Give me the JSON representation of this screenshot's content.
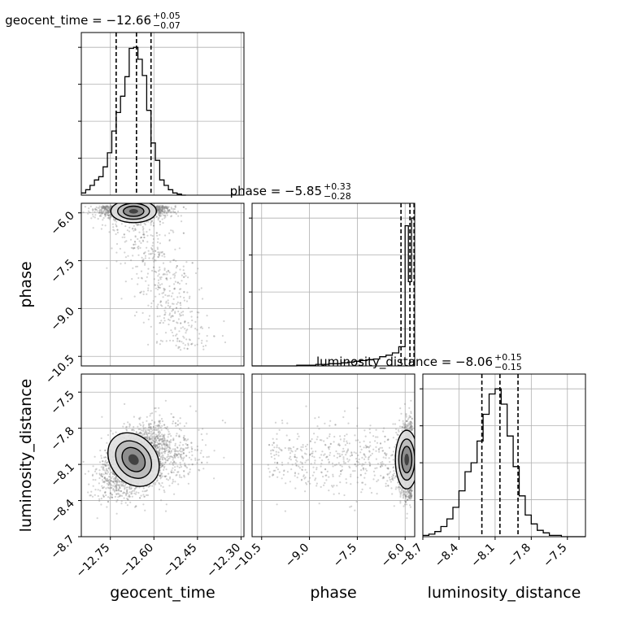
{
  "chart_data": {
    "type": "corner",
    "parameters": [
      "geocent_time",
      "phase",
      "luminosity_distance"
    ],
    "axis_labels": [
      "geocent_time",
      "phase",
      "luminosity_distance"
    ],
    "ranges": {
      "geocent_time": [
        -12.85,
        -12.29
      ],
      "phase": [
        -10.8,
        -5.7
      ],
      "luminosity_distance": [
        -8.7,
        -7.35
      ]
    },
    "ticks": {
      "geocent_time": [
        {
          "value": -12.75,
          "label": "−12.75"
        },
        {
          "value": -12.6,
          "label": "−12.60"
        },
        {
          "value": -12.45,
          "label": "−12.45"
        },
        {
          "value": -12.3,
          "label": "−12.30"
        }
      ],
      "phase": [
        {
          "value": -10.5,
          "label": "−10.5"
        },
        {
          "value": -9.0,
          "label": "−9.0"
        },
        {
          "value": -7.5,
          "label": "−7.5"
        },
        {
          "value": -6.0,
          "label": "−6.0"
        }
      ],
      "luminosity_distance": [
        {
          "value": -8.7,
          "label": "−8.7"
        },
        {
          "value": -8.4,
          "label": "−8.4"
        },
        {
          "value": -8.1,
          "label": "−8.1"
        },
        {
          "value": -7.8,
          "label": "−7.8"
        },
        {
          "value": -7.5,
          "label": "−7.5"
        }
      ]
    },
    "titles": [
      {
        "param": "geocent_time",
        "name": "geocent_time",
        "median": "−12.66",
        "plus": "+0.05",
        "minus": "−0.07"
      },
      {
        "param": "phase",
        "name": "phase",
        "median": "−5.85",
        "plus": "+0.33",
        "minus": "−0.28"
      },
      {
        "param": "luminosity_distance",
        "name": "luminosity_distance",
        "median": "−8.06",
        "plus": "+0.15",
        "minus": "−0.15"
      }
    ],
    "quantiles": {
      "geocent_time": [
        -12.73,
        -12.66,
        -12.61
      ],
      "phase": [
        -6.13,
        -5.85,
        -5.72
      ],
      "luminosity_distance": [
        -8.21,
        -8.06,
        -7.91
      ]
    },
    "histograms": {
      "geocent_time": {
        "edges": [
          -12.85,
          -12.835,
          -12.82,
          -12.805,
          -12.79,
          -12.775,
          -12.76,
          -12.745,
          -12.73,
          -12.715,
          -12.7,
          -12.685,
          -12.67,
          -12.655,
          -12.64,
          -12.625,
          -12.61,
          -12.595,
          -12.58,
          -12.565,
          -12.55,
          -12.535,
          -12.52,
          -12.505,
          -12.49
        ],
        "counts": [
          2,
          5,
          9,
          14,
          17,
          26,
          39,
          59,
          76,
          91,
          109,
          135,
          136,
          125,
          110,
          78,
          48,
          32,
          14,
          9,
          5,
          2,
          1,
          0
        ]
      },
      "phase": {
        "edges": [
          -10.8,
          -10.6,
          -10.4,
          -10.2,
          -10.0,
          -9.8,
          -9.6,
          -9.4,
          -9.2,
          -9.0,
          -8.8,
          -8.6,
          -8.4,
          -8.2,
          -8.0,
          -7.8,
          -7.6,
          -7.4,
          -7.2,
          -7.0,
          -6.8,
          -6.6,
          -6.4,
          -6.2,
          -6.0,
          -5.9,
          -5.8,
          -5.7
        ],
        "counts": [
          0,
          0,
          0,
          0,
          0,
          0,
          0,
          1,
          1,
          1,
          2,
          2,
          3,
          3,
          4,
          5,
          6,
          7,
          8,
          9,
          12,
          14,
          17,
          25,
          183,
          110,
          193
        ]
      },
      "luminosity_distance": {
        "edges": [
          -8.7,
          -8.65,
          -8.6,
          -8.55,
          -8.5,
          -8.45,
          -8.4,
          -8.35,
          -8.3,
          -8.25,
          -8.2,
          -8.15,
          -8.1,
          -8.05,
          -8.0,
          -7.95,
          -7.9,
          -7.85,
          -7.8,
          -7.75,
          -7.7,
          -7.65,
          -7.6,
          -7.55,
          -7.5,
          -7.45,
          -7.4,
          -7.35
        ],
        "counts": [
          1,
          2,
          4,
          8,
          14,
          23,
          36,
          51,
          58,
          75,
          96,
          112,
          116,
          104,
          79,
          55,
          32,
          17,
          10,
          5,
          3,
          1,
          1,
          0,
          0,
          0,
          0
        ]
      }
    },
    "scatter_center": {
      "geocent_time": -12.67,
      "phase": -5.95,
      "luminosity_distance": -8.06
    },
    "grid": true,
    "colors": {
      "line": "#000000",
      "points": "#808080",
      "grid": "#b0b0b0",
      "background": "#ffffff"
    }
  }
}
